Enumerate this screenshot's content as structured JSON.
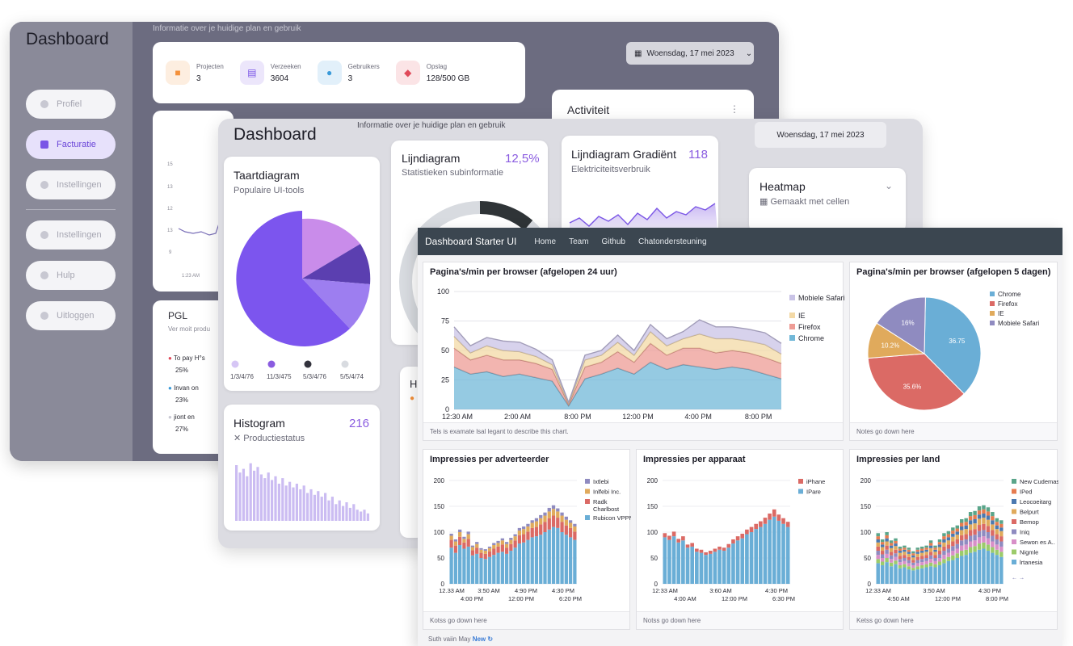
{
  "layer1": {
    "title": "Dashboard",
    "subtitle": "Informatie over je huidige plan en gebruik",
    "date_label": "Woensdag, 17 mei 2023",
    "nav": [
      {
        "label": "Profiel",
        "icon": "user-icon"
      },
      {
        "label": "Facturatie",
        "icon": "card-icon",
        "active": true
      },
      {
        "label": "Instellingen",
        "icon": "gear-icon"
      },
      {
        "label": "Instellingen",
        "icon": "info-icon"
      },
      {
        "label": "Hulp",
        "icon": "phone-icon"
      },
      {
        "label": "Uitloggen",
        "icon": "logout-icon"
      }
    ],
    "stats": [
      {
        "label": "Projecten",
        "value": "3",
        "color": "#f4913b",
        "bg": "#fdeee0"
      },
      {
        "label": "Verzeeken",
        "value": "3604",
        "color": "#7a55e6",
        "bg": "#ece6fb"
      },
      {
        "label": "Gebruikers",
        "value": "3",
        "color": "#3a9ad9",
        "bg": "#e2f0fa"
      },
      {
        "label": "Opslag",
        "value": "128/500 GB",
        "color": "#e04a5a",
        "bg": "#fbe4e6"
      }
    ],
    "activity_title": "Activiteit",
    "line_ticks": [
      "15",
      "13",
      "12",
      "13",
      "9"
    ],
    "line_x_label": "1:23 AM",
    "pgl": {
      "title": "PGL",
      "subtitle": "Ver moit produ",
      "items": [
        {
          "label": "To pay H°s",
          "value": "25%",
          "color": "#e04a5a"
        },
        {
          "label": "Invan on",
          "value": "23%",
          "color": "#3a9ad9"
        },
        {
          "label": "jiont en",
          "value": "27%",
          "color": "#c8c8d2"
        }
      ]
    }
  },
  "layer2": {
    "title": "Dashboard",
    "subtitle": "Informatie over je huidige plan en gebruik",
    "date_label": "Woensdag, 17 mei 2023",
    "pie": {
      "title": "Taartdiagram",
      "subtitle": "Populaire UI-tools",
      "legend": [
        {
          "label": "1/3/4/76",
          "color": "#d6c6f5"
        },
        {
          "label": "11/3/475",
          "color": "#8a5ce0"
        },
        {
          "label": "5/3/4/76",
          "color": "#33333d"
        },
        {
          "label": "5/5/4/74",
          "color": "#d8dbe0"
        }
      ]
    },
    "line1": {
      "title": "Lijndiagram",
      "subtitle": "Statistieken subinformatie",
      "value": "12,5%"
    },
    "line2": {
      "title": "Lijndiagram Gradiënt",
      "subtitle": "Elektriciteitsverbruik",
      "value": "118"
    },
    "heatmap": {
      "title": "Heatmap",
      "subtitle": "Gemaakt met cellen"
    },
    "histogram": {
      "title": "Histogram",
      "subtitle": "Productiestatus",
      "value": "216"
    },
    "small_card_letter": "H"
  },
  "layer3": {
    "brand": "Dashboard Starter UI",
    "nav": [
      "Home",
      "Team",
      "Github",
      "Chatondersteuning"
    ],
    "area_title": "Pagina's/min per browser (afgelopen 24 uur)",
    "area_note": "Tels is examate lsal legant to describe this chart.",
    "pie_title": "Pagina's/min per browser (afgelopen 5 dagen)",
    "pie_note": "Notes go down here",
    "bar1_title": "Impressies per adverteerder",
    "bar1_note": "Kotss go down here",
    "bar2_title": "Impressies per apparaat",
    "bar2_note": "Notss go down here",
    "bar3_title": "Impressies per land",
    "bar3_note": "Ketss go down here",
    "bar3_extra_legend": "← →",
    "footer_text": "Suth vaiin May",
    "footer_link": "New ↻"
  },
  "chart_data": [
    {
      "type": "area",
      "title": "Pagina's/min per browser (afgelopen 24 uur)",
      "x_labels": [
        "12:30 AM",
        "2:00 AM",
        "8:00 PM",
        "12:00 PM",
        "4:00 PM",
        "8:00 PM"
      ],
      "ylim": [
        0,
        100
      ],
      "y_ticks": [
        0,
        25,
        50,
        75,
        100
      ],
      "stacked": true,
      "series": [
        {
          "name": "Chrome",
          "color": "#72b8d8",
          "values": [
            36,
            30,
            32,
            28,
            30,
            27,
            24,
            3,
            26,
            30,
            35,
            30,
            40,
            34,
            38,
            36,
            34,
            36,
            34,
            30,
            26
          ]
        },
        {
          "name": "Firefox",
          "color": "#ee9c95",
          "values": [
            16,
            12,
            14,
            14,
            12,
            12,
            10,
            1,
            10,
            10,
            14,
            10,
            16,
            12,
            14,
            16,
            14,
            14,
            14,
            14,
            13
          ]
        },
        {
          "name": "IE",
          "color": "#f3d9a6",
          "values": [
            10,
            6,
            8,
            8,
            7,
            6,
            4,
            1,
            6,
            6,
            8,
            6,
            10,
            8,
            8,
            12,
            12,
            10,
            10,
            11,
            8
          ]
        },
        {
          "name": "Mobiele Safari",
          "color": "#c9c3e6",
          "values": [
            8,
            6,
            7,
            8,
            8,
            6,
            4,
            1,
            4,
            4,
            6,
            4,
            6,
            6,
            6,
            12,
            10,
            10,
            10,
            10,
            9
          ]
        }
      ],
      "legend_position": "right"
    },
    {
      "type": "pie",
      "title": "Pagina's/min per browser (afgelopen 5 dagen)",
      "slices": [
        {
          "name": "Chrome",
          "value": 36.7,
          "label": "36.75",
          "color": "#6aaed6"
        },
        {
          "name": "Firefox",
          "value": 35.6,
          "label": "35.6%",
          "color": "#db6a65"
        },
        {
          "name": "IE",
          "value": 10.2,
          "label": "10.2%",
          "color": "#e0aa5c"
        },
        {
          "name": "Mobiele Safari",
          "value": 16,
          "label": "16%",
          "color": "#8f8bc0"
        }
      ],
      "legend_position": "top-right"
    },
    {
      "type": "bar",
      "stacked": true,
      "title": "Impressies per adverteerder",
      "ylim": [
        0,
        200
      ],
      "y_ticks": [
        0,
        50,
        100,
        150,
        200
      ],
      "x_labels_top": [
        "12.33 AM",
        "3:50 AM",
        "4:90 PM",
        "4:30 PM"
      ],
      "x_labels_bottom": [
        "4:00 PM",
        "12:00 PM",
        "6:20 PM"
      ],
      "series": [
        {
          "name": "Rubicon VPPN",
          "color": "#6aaed6",
          "values": [
            70,
            60,
            75,
            68,
            72,
            55,
            58,
            50,
            48,
            52,
            56,
            60,
            62,
            58,
            64,
            70,
            78,
            80,
            85,
            90,
            92,
            95,
            100,
            105,
            110,
            108,
            100,
            95,
            90,
            85
          ]
        },
        {
          "name": "Radk Charlbost",
          "color": "#db6a65",
          "values": [
            15,
            14,
            16,
            12,
            15,
            10,
            12,
            10,
            10,
            11,
            12,
            12,
            14,
            12,
            13,
            14,
            16,
            16,
            16,
            18,
            18,
            20,
            20,
            22,
            22,
            20,
            20,
            18,
            18,
            16
          ]
        },
        {
          "name": "Inlfebi Inc.",
          "color": "#e0aa5c",
          "values": [
            8,
            8,
            9,
            7,
            9,
            6,
            7,
            6,
            6,
            6,
            7,
            7,
            8,
            7,
            8,
            8,
            9,
            10,
            10,
            10,
            11,
            12,
            12,
            13,
            13,
            12,
            12,
            11,
            10,
            10
          ]
        },
        {
          "name": "Ixtlebi",
          "color": "#8f8bc0",
          "values": [
            4,
            4,
            5,
            4,
            5,
            3,
            4,
            3,
            3,
            3,
            4,
            4,
            4,
            4,
            4,
            4,
            5,
            5,
            5,
            5,
            6,
            6,
            6,
            7,
            7,
            6,
            6,
            6,
            5,
            5
          ]
        }
      ]
    },
    {
      "type": "bar",
      "stacked": true,
      "title": "Impressies per apparaat",
      "ylim": [
        0,
        200
      ],
      "y_ticks": [
        0,
        50,
        100,
        150,
        200
      ],
      "x_labels_top": [
        "12:33 AM",
        "3:60 AM",
        "4:30 PM"
      ],
      "x_labels_bottom": [
        "4:00 AM",
        "12:00 PM",
        "6:30 PM"
      ],
      "series": [
        {
          "name": "IPare",
          "color": "#6aaed6",
          "values": [
            90,
            85,
            92,
            80,
            84,
            70,
            72,
            62,
            60,
            56,
            58,
            62,
            66,
            64,
            70,
            78,
            84,
            88,
            96,
            100,
            106,
            110,
            116,
            124,
            130,
            122,
            116,
            110
          ]
        },
        {
          "name": "iPhane",
          "color": "#db6a65",
          "values": [
            8,
            8,
            9,
            7,
            8,
            6,
            7,
            6,
            6,
            5,
            6,
            6,
            6,
            6,
            7,
            8,
            8,
            9,
            9,
            10,
            10,
            11,
            12,
            12,
            14,
            12,
            11,
            10
          ]
        }
      ]
    },
    {
      "type": "bar",
      "stacked": true,
      "title": "Impressies per land",
      "ylim": [
        0,
        200
      ],
      "y_ticks": [
        0,
        50,
        100,
        150,
        200
      ],
      "x_labels_top": [
        "12:33 AM",
        "3:50 AM",
        "4:30 PM"
      ],
      "x_labels_bottom": [
        "4:50 AM",
        "12:00 PM",
        "8:00 PM"
      ],
      "series": [
        {
          "name": "lrtanesia",
          "color": "#6aaed6",
          "values": [
            40,
            36,
            42,
            34,
            38,
            30,
            32,
            28,
            26,
            28,
            30,
            32,
            34,
            32,
            36,
            40,
            44,
            46,
            50,
            54,
            56,
            60,
            62,
            66,
            68,
            64,
            60,
            56,
            52
          ]
        },
        {
          "name": "Nigmle",
          "color": "#9ccb6b",
          "values": [
            8,
            7,
            8,
            7,
            7,
            6,
            6,
            6,
            5,
            6,
            6,
            6,
            7,
            6,
            7,
            8,
            8,
            9,
            9,
            10,
            10,
            11,
            11,
            12,
            12,
            12,
            11,
            10,
            10
          ]
        },
        {
          "name": "Sewon es A..",
          "color": "#d88fc8",
          "values": [
            8,
            7,
            8,
            7,
            7,
            6,
            6,
            6,
            5,
            6,
            6,
            6,
            7,
            6,
            7,
            8,
            8,
            9,
            9,
            10,
            10,
            11,
            11,
            12,
            12,
            12,
            11,
            10,
            10
          ]
        },
        {
          "name": "Iniq",
          "color": "#8f8bc0",
          "values": [
            8,
            7,
            8,
            7,
            7,
            6,
            6,
            6,
            5,
            6,
            6,
            6,
            7,
            6,
            7,
            8,
            8,
            9,
            9,
            10,
            10,
            11,
            11,
            12,
            12,
            12,
            11,
            10,
            10
          ]
        },
        {
          "name": "Bemop",
          "color": "#db6a65",
          "values": [
            8,
            7,
            8,
            7,
            7,
            6,
            6,
            6,
            5,
            6,
            6,
            6,
            7,
            6,
            7,
            8,
            8,
            9,
            9,
            10,
            10,
            11,
            11,
            12,
            12,
            12,
            11,
            10,
            10
          ]
        },
        {
          "name": "Belpurt",
          "color": "#e0aa5c",
          "values": [
            8,
            7,
            8,
            7,
            7,
            6,
            6,
            6,
            5,
            6,
            6,
            6,
            7,
            6,
            7,
            8,
            8,
            9,
            9,
            10,
            10,
            11,
            11,
            12,
            12,
            12,
            11,
            10,
            10
          ]
        },
        {
          "name": "Leocoeitarg",
          "color": "#4b79b0",
          "values": [
            6,
            5,
            6,
            5,
            5,
            4,
            4,
            4,
            4,
            4,
            4,
            4,
            5,
            4,
            5,
            6,
            6,
            6,
            6,
            7,
            7,
            8,
            8,
            8,
            8,
            8,
            8,
            7,
            7
          ]
        },
        {
          "name": "IPed",
          "color": "#e67c50",
          "values": [
            6,
            5,
            6,
            5,
            5,
            4,
            4,
            4,
            4,
            4,
            4,
            4,
            5,
            4,
            5,
            6,
            6,
            6,
            6,
            7,
            7,
            8,
            8,
            8,
            8,
            8,
            8,
            7,
            7
          ]
        },
        {
          "name": "New Cudemas",
          "color": "#5aa58a",
          "values": [
            6,
            5,
            6,
            5,
            5,
            4,
            4,
            4,
            4,
            4,
            4,
            4,
            5,
            4,
            5,
            6,
            6,
            6,
            6,
            7,
            7,
            8,
            8,
            8,
            8,
            8,
            8,
            7,
            7
          ]
        }
      ]
    }
  ]
}
